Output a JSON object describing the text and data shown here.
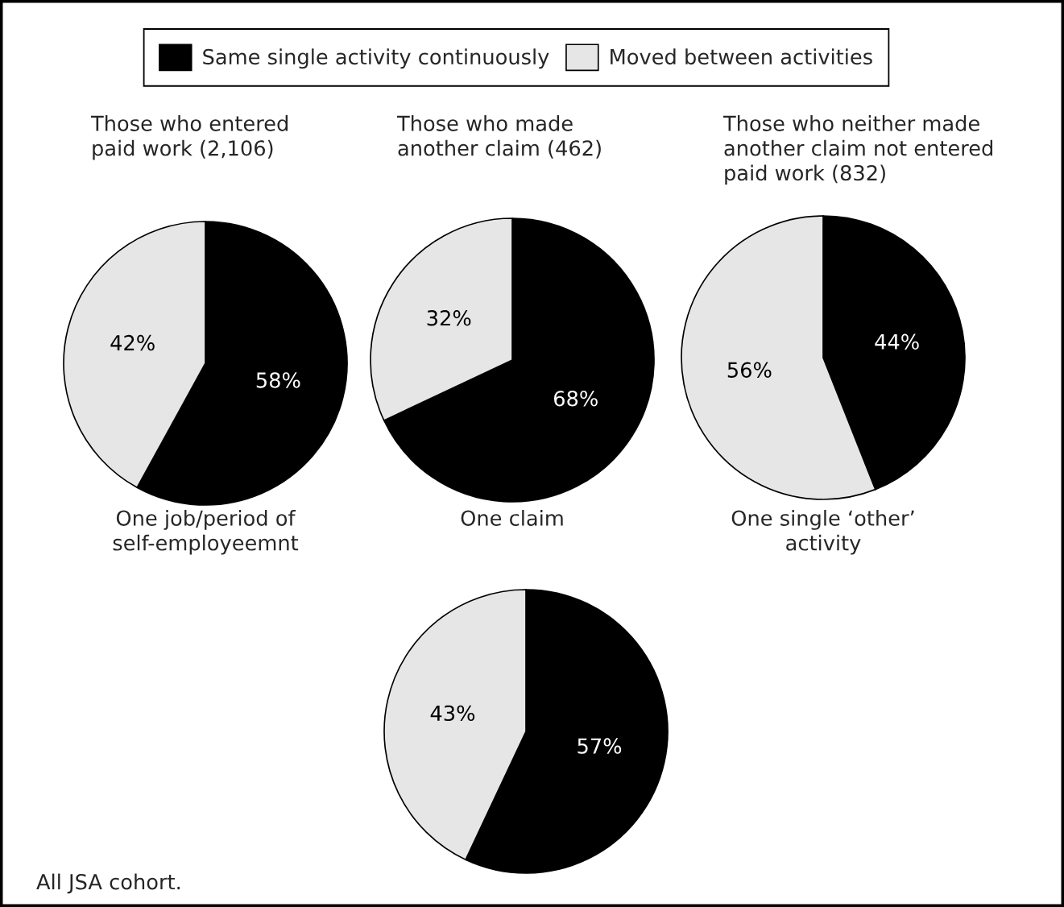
{
  "chart_data": [
    {
      "type": "pie",
      "title": "Those who entered\npaid work (2,106)",
      "categories": [
        "Same single activity continuously",
        "Moved between activities"
      ],
      "values": [
        58,
        42
      ],
      "colors": [
        "#000000",
        "#e6e6e6"
      ],
      "value_labels": [
        "58%",
        "42%"
      ],
      "annotations": [
        "One job/period of\nself-employeemnt"
      ],
      "legend": "top"
    },
    {
      "type": "pie",
      "title": "Those who made\nanother claim (462)",
      "categories": [
        null,
        null
      ],
      "values": [
        68,
        32
      ],
      "colors": [
        "#000000",
        "#e6e6e6"
      ],
      "value_labels": [
        "68%",
        "32%"
      ],
      "annotations": [
        "One claim"
      ]
    },
    {
      "type": "pie",
      "title": "Those who neither made\nanother claim not entered\npaid work (832)",
      "categories": [
        null,
        null
      ],
      "values": [
        44,
        56
      ],
      "colors": [
        "#000000",
        "#e6e6e6"
      ],
      "value_labels": [
        "44%",
        "56%"
      ],
      "annotations": [
        "One single ‘other’\nactivity"
      ]
    },
    {
      "type": "pie",
      "categories": [
        null,
        null
      ],
      "values": [
        57,
        43
      ],
      "colors": [
        "#000000",
        "#e6e6e6"
      ],
      "value_labels": [
        "57%",
        "43%"
      ],
      "annotations": [
        "All JSA cohort."
      ]
    }
  ]
}
